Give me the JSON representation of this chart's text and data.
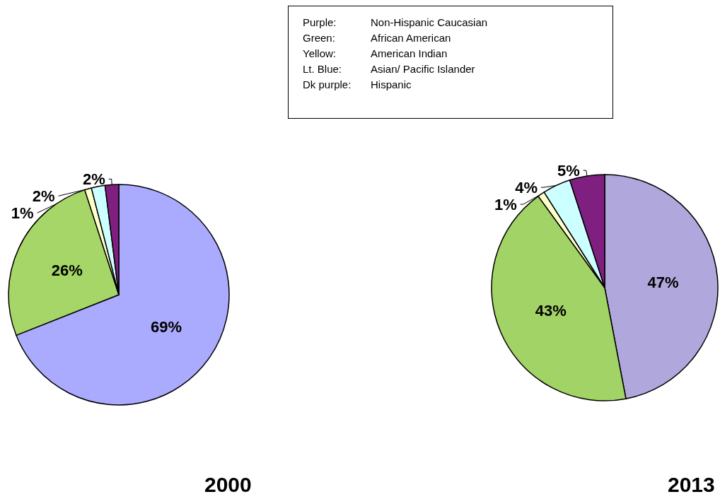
{
  "chart_data": [
    {
      "type": "other",
      "annotations": [
        "Purple: Non-Hispanic Caucasian",
        "Green: African American",
        "Yellow: American Indian",
        "Lt. Blue: Asian/ Pacific Islander",
        "Dk purple: Hispanic"
      ]
    },
    {
      "type": "pie",
      "title": "2000",
      "categories": [
        null,
        null,
        null,
        null,
        null
      ],
      "values": [
        69,
        26,
        1,
        2,
        2
      ],
      "colors": [
        "#aaaaff",
        "#a6d667",
        "#ffffcc",
        "#ccffff",
        "#7f1f7f"
      ],
      "value_labels": [
        "69%",
        "26%",
        "1%",
        "2%",
        "2%"
      ]
    },
    {
      "type": "pie",
      "title": "2013",
      "categories": [
        null,
        null,
        null,
        null,
        null
      ],
      "values": [
        47,
        43,
        1,
        4,
        5
      ],
      "colors": [
        "#b0a8dc",
        "#a2d366",
        "#ffffcc",
        "#ccffff",
        "#7f1f7f"
      ],
      "value_labels": [
        "47%",
        "43%",
        "1%",
        "4%",
        "5%"
      ]
    }
  ]
}
